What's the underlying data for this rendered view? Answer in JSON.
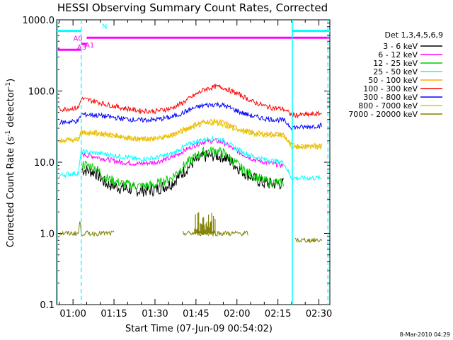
{
  "chart_data": {
    "type": "line",
    "title": "HESSI Observing Summary Count Rates, Corrected",
    "xlabel": "Start Time (07-Jun-09 00:54:02)",
    "ylabel_main": "Corrected Count Rate (s",
    "ylabel_sup1": "-1",
    "ylabel_mid": " detector",
    "ylabel_sup2": "-1",
    "ylabel_end": ")",
    "y_scale": "log",
    "ylim": [
      0.1,
      1000
    ],
    "xlim_minutes": [
      54,
      154
    ],
    "y_ticks": [
      "1000.0",
      "100.0",
      "10.0",
      "1.0",
      "0.1"
    ],
    "x_ticks": [
      {
        "m": 60,
        "label": "01:00"
      },
      {
        "m": 75,
        "label": "01:15"
      },
      {
        "m": 90,
        "label": "01:30"
      },
      {
        "m": 105,
        "label": "01:45"
      },
      {
        "m": 120,
        "label": "02:00"
      },
      {
        "m": 135,
        "label": "02:15"
      },
      {
        "m": 150,
        "label": "02:30"
      }
    ],
    "legend_title": "Det 1,3,4,5,6,9",
    "legend_position": "right",
    "series": [
      {
        "name": "3 - 6 keV",
        "color": "#000000",
        "x": [
          55,
          62,
          63,
          68,
          72,
          78,
          84,
          90,
          96,
          100,
          104,
          108,
          112,
          115,
          118,
          122,
          126,
          130,
          133,
          137,
          140,
          144
        ],
        "y": [
          null,
          null,
          8,
          7.2,
          5,
          4.3,
          4,
          4.1,
          5,
          7,
          10,
          12,
          12.5,
          12,
          10,
          7.5,
          6,
          5,
          5,
          5,
          null,
          null
        ]
      },
      {
        "name": "6 - 12 keV",
        "color": "#ff00ff",
        "x": [
          55,
          62,
          63,
          68,
          72,
          78,
          84,
          90,
          96,
          100,
          104,
          108,
          112,
          115,
          118,
          122,
          126,
          130,
          133,
          137,
          140,
          144
        ],
        "y": [
          null,
          null,
          13,
          12,
          11,
          10,
          9.5,
          10,
          11.5,
          14,
          17,
          19.5,
          20,
          19,
          16,
          13,
          11,
          10,
          9.5,
          9,
          null,
          null
        ]
      },
      {
        "name": "12 - 25 keV",
        "color": "#00cc00",
        "x": [
          55,
          62,
          63,
          68,
          72,
          78,
          84,
          90,
          96,
          100,
          104,
          108,
          112,
          115,
          118,
          122,
          126,
          130,
          133,
          137,
          140,
          144
        ],
        "y": [
          null,
          null,
          9.5,
          8.5,
          6,
          5,
          4.6,
          4.8,
          6,
          8.5,
          11.5,
          14,
          14.5,
          13.5,
          11,
          8,
          6.5,
          5.5,
          5.2,
          5,
          null,
          null
        ]
      },
      {
        "name": "25 - 50 keV",
        "color": "#00ffff",
        "x": [
          55,
          58,
          62,
          63,
          68,
          72,
          78,
          84,
          90,
          96,
          100,
          104,
          108,
          112,
          115,
          118,
          122,
          126,
          130,
          133,
          137,
          140,
          144,
          151
        ],
        "y": [
          6.5,
          6.8,
          7,
          14,
          13.5,
          13,
          12,
          11,
          11.5,
          13,
          16,
          19,
          21,
          21.5,
          20,
          17,
          14,
          12,
          11,
          10.5,
          10,
          6,
          6,
          6
        ]
      },
      {
        "name": "50 - 100 keV",
        "color": "#ffaa00",
        "x": [
          55,
          62,
          63,
          68,
          72,
          78,
          84,
          90,
          96,
          100,
          104,
          108,
          112,
          115,
          118,
          122,
          126,
          130,
          133,
          137,
          140,
          144,
          151
        ],
        "y": [
          20,
          21,
          26,
          26,
          25,
          23,
          21,
          21.5,
          24,
          28,
          33,
          37,
          38,
          36,
          32,
          28,
          26,
          25,
          25,
          24.5,
          17,
          17,
          17
        ]
      },
      {
        "name": "100 - 300 keV",
        "color": "#ff0000",
        "x": [
          55,
          62,
          63,
          68,
          72,
          78,
          84,
          90,
          96,
          100,
          104,
          108,
          112,
          115,
          118,
          122,
          126,
          130,
          133,
          137,
          140,
          144,
          151
        ],
        "y": [
          55,
          58,
          78,
          72,
          65,
          58,
          53,
          52,
          57,
          68,
          85,
          105,
          115,
          112,
          100,
          85,
          70,
          62,
          58,
          56,
          46,
          46,
          48
        ]
      },
      {
        "name": "300 - 800 keV",
        "color": "#0000ff",
        "x": [
          55,
          62,
          63,
          68,
          72,
          78,
          84,
          90,
          96,
          100,
          104,
          108,
          112,
          115,
          118,
          122,
          126,
          130,
          133,
          137,
          140,
          144,
          151
        ],
        "y": [
          36,
          38,
          47,
          46,
          44,
          41,
          39,
          39.5,
          43,
          49,
          57,
          63,
          65,
          63,
          57,
          49,
          44,
          41,
          40,
          39,
          31,
          31,
          33
        ]
      },
      {
        "name": "800 - 7000 keV",
        "color": "#ddcc00",
        "x": [
          55,
          62,
          63,
          68,
          72,
          78,
          84,
          90,
          96,
          100,
          104,
          108,
          112,
          115,
          118,
          122,
          126,
          130,
          133,
          137,
          140,
          144,
          151
        ],
        "y": [
          20,
          21,
          26,
          25.5,
          24.5,
          22.5,
          21,
          21,
          23.5,
          27,
          31,
          35,
          36,
          34,
          30,
          27,
          25,
          24,
          24,
          23.5,
          16.5,
          16.5,
          16.5
        ]
      },
      {
        "name": "7000 - 20000 keV",
        "color": "#808000",
        "x": [
          55,
          62,
          62.5,
          63,
          65,
          66,
          68,
          69,
          70,
          71,
          72,
          74,
          75,
          95,
          98,
          100,
          104,
          108,
          112,
          116,
          118,
          120,
          124,
          140,
          141,
          144,
          151
        ],
        "y": [
          1,
          1,
          1.5,
          1,
          1,
          1,
          1,
          1,
          1,
          1,
          1,
          1,
          1,
          null,
          null,
          1,
          1,
          1,
          1,
          1,
          1,
          1,
          1,
          null,
          0.8,
          0.8,
          0.8
        ]
      }
    ],
    "legend_keys": [
      "3 - 6 keV",
      "6 - 12 keV",
      "12 - 25 keV",
      "25 - 50 keV",
      "50 - 100 keV",
      "100 - 300 keV",
      "300 - 800 keV",
      "800 - 7000 keV",
      "7000 - 20000 keV"
    ],
    "spike_window_minutes": [
      104.5,
      112
    ],
    "spike_peak": 2,
    "attenuator_states": [
      {
        "label": "N",
        "color": "#00ffff",
        "y": 700,
        "x0": 54,
        "x1": 63
      },
      {
        "label": "A0",
        "color": "#ff00ff",
        "y": 560,
        "x0": 65,
        "x1": 154
      },
      {
        "label": "A1",
        "color": "#ff00ff",
        "y": 380,
        "x0": 54,
        "x1": 63
      },
      {
        "label": "A3",
        "color": "#ff00ff",
        "y": 460,
        "x0": 63,
        "x1": 65
      }
    ],
    "extra_segments": [
      {
        "color": "#00ffff",
        "y": 700,
        "x0": 140,
        "x1": 154
      }
    ],
    "vlines_solid": [
      54,
      140
    ],
    "vlines_dashed": [
      63,
      153.3
    ]
  },
  "footer_date": "8-Mar-2010 04:29"
}
